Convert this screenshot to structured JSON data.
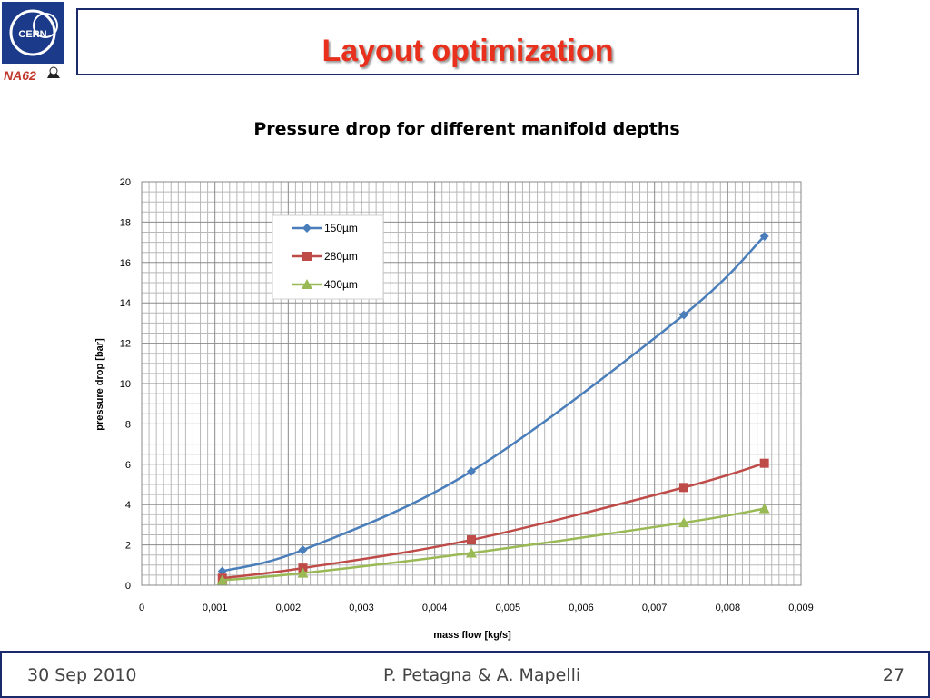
{
  "slide": {
    "title": "Layout optimization",
    "logo_text": "NA62",
    "logo_org": "CERN"
  },
  "footer": {
    "date": "30 Sep 2010",
    "authors": "P. Petagna & A. Mapelli",
    "page": "27"
  },
  "colors": {
    "frame": "#1b2a6b",
    "title": "#e8301c"
  },
  "chart_data": {
    "type": "line",
    "title": "Pressure drop for different manifold depths",
    "xlabel": "mass flow [kg/s]",
    "ylabel": "pressure drop [bar]",
    "xlim": [
      0,
      0.009
    ],
    "ylim": [
      0,
      20
    ],
    "x_ticks": [
      "0",
      "0,001",
      "0,002",
      "0,003",
      "0,004",
      "0,005",
      "0,006",
      "0,007",
      "0,008",
      "0,009"
    ],
    "y_ticks": [
      "0",
      "2",
      "4",
      "6",
      "8",
      "10",
      "12",
      "14",
      "16",
      "18",
      "20"
    ],
    "grid": true,
    "legend_position": "top-left",
    "x": [
      0.0011,
      0.0022,
      0.0045,
      0.0074,
      0.0085
    ],
    "series": [
      {
        "name": "150µm",
        "color": "#4a7ebb",
        "marker": "diamond",
        "values": [
          0.7,
          1.75,
          5.65,
          13.4,
          17.3
        ]
      },
      {
        "name": "280µm",
        "color": "#be4b48",
        "marker": "square",
        "values": [
          0.35,
          0.85,
          2.25,
          4.85,
          6.05
        ]
      },
      {
        "name": "400µm",
        "color": "#98b954",
        "marker": "triangle",
        "values": [
          0.25,
          0.6,
          1.6,
          3.1,
          3.8
        ]
      }
    ]
  }
}
